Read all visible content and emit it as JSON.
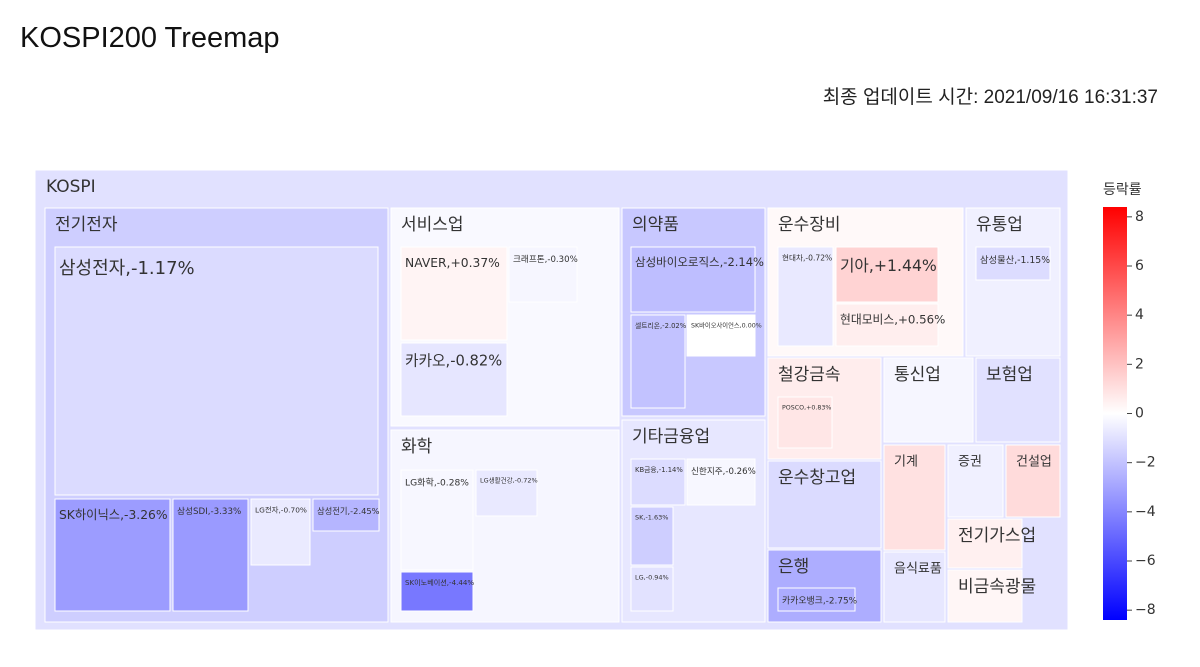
{
  "header": {
    "title": "KOSPI200 Treemap",
    "updated": "최종 업데이트 시간: 2021/09/16 16:31:37"
  },
  "chart_data": {
    "type": "treemap",
    "root": {
      "name": "KOSPI",
      "change": -1.0
    },
    "colorscale": [
      "#0000ff",
      "#ffffff",
      "#ff0000"
    ],
    "colorbar": {
      "title": "등락률",
      "clim": [
        -8.4,
        8.4
      ],
      "ticks": [
        {
          "value": -8,
          "label": "−8"
        },
        {
          "value": -6,
          "label": "−6"
        },
        {
          "value": -4,
          "label": "−4"
        },
        {
          "value": -2,
          "label": "−2"
        },
        0,
        2,
        4,
        6,
        8
      ]
    },
    "sectors": [
      {
        "name": "전기전자",
        "change": -1.6,
        "children": [
          {
            "label": "삼성전자,-1.17%",
            "change": -1.17
          },
          {
            "label": "SK하이닉스,-3.26%",
            "change": -3.26
          },
          {
            "label": "삼성SDI,-3.33%",
            "change": -3.33
          },
          {
            "label": "LG전자,-0.70%",
            "change": -0.7
          },
          {
            "label": "삼성전기,-2.45%",
            "change": -2.45
          }
        ]
      },
      {
        "name": "서비스업",
        "change": -0.2,
        "children": [
          {
            "label": "NAVER,+0.37%",
            "change": 0.37
          },
          {
            "label": "카카오,-0.82%",
            "change": -0.82
          },
          {
            "label": "크래프톤,-0.30%",
            "change": -0.3
          }
        ]
      },
      {
        "name": "화학",
        "change": -0.3,
        "children": [
          {
            "label": "LG화학,-0.28%",
            "change": -0.28
          },
          {
            "label": "SK이노베이션,-4.44%",
            "change": -4.44
          },
          {
            "label": "LG생활건강,-0.72%",
            "change": -0.72
          }
        ]
      },
      {
        "name": "의약품",
        "change": -1.8,
        "children": [
          {
            "label": "삼성바이오로직스,-2.14%",
            "change": -2.14
          },
          {
            "label": "셀트리온,-2.02%",
            "change": -2.02
          },
          {
            "label": "SK바이오사이언스,0.00%",
            "change": 0
          }
        ]
      },
      {
        "name": "기타금융업",
        "change": -0.8,
        "children": [
          {
            "label": "KB금융,-1.14%",
            "change": -1.14
          },
          {
            "label": "신한지주,-0.26%",
            "change": -0.26
          },
          {
            "label": "SK,-1.63%",
            "change": -1.63
          },
          {
            "label": "LG,-0.94%",
            "change": -0.94
          }
        ]
      },
      {
        "name": "운수장비",
        "change": 0.2,
        "children": [
          {
            "label": "현대차,-0.72%",
            "change": -0.72
          },
          {
            "label": "기아,+1.44%",
            "change": 1.44
          },
          {
            "label": "현대모비스,+0.56%",
            "change": 0.56
          }
        ]
      },
      {
        "name": "유통업",
        "change": -0.5,
        "children": [
          {
            "label": "삼성물산,-1.15%",
            "change": -1.15
          }
        ]
      },
      {
        "name": "철강금속",
        "change": 0.6,
        "children": [
          {
            "label": "POSCO,+0.83%",
            "change": 0.83
          }
        ]
      },
      {
        "name": "통신업",
        "change": -0.3,
        "children": []
      },
      {
        "name": "보험업",
        "change": -1.0,
        "children": []
      },
      {
        "name": "운수창고업",
        "change": -1.2,
        "children": []
      },
      {
        "name": "기계",
        "change": 1.0,
        "children": []
      },
      {
        "name": "증권",
        "change": -0.5,
        "children": []
      },
      {
        "name": "건설업",
        "change": 1.2,
        "children": []
      },
      {
        "name": "은행",
        "change": -2.7,
        "children": [
          {
            "label": "카카오뱅크,-2.75%",
            "change": -2.75
          }
        ]
      },
      {
        "name": "음식료품",
        "change": -0.8,
        "children": []
      },
      {
        "name": "전기가스업",
        "change": 0.5,
        "children": []
      },
      {
        "name": "비금속광물",
        "change": 0.3,
        "children": []
      }
    ]
  }
}
